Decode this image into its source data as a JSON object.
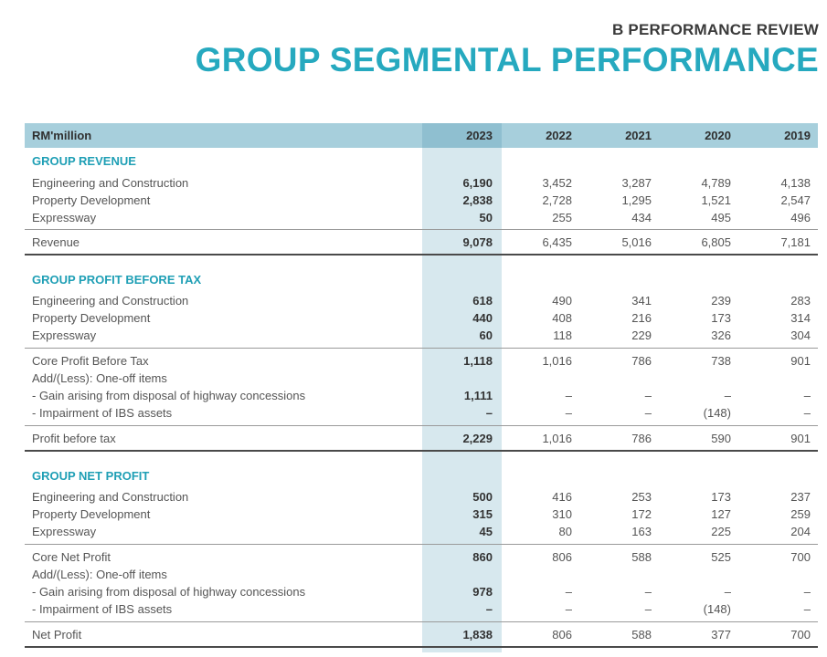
{
  "header": {
    "section": "B  PERFORMANCE REVIEW",
    "title": "GROUP SEGMENTAL PERFORMANCE"
  },
  "table": {
    "unit_label": "RM'million",
    "years": [
      "2023",
      "2022",
      "2021",
      "2020",
      "2019"
    ],
    "revenue": {
      "title": "GROUP REVENUE",
      "rows": [
        {
          "label": "Engineering and Construction",
          "values": [
            "6,190",
            "3,452",
            "3,287",
            "4,789",
            "4,138"
          ]
        },
        {
          "label": "Property Development",
          "values": [
            "2,838",
            "2,728",
            "1,295",
            "1,521",
            "2,547"
          ]
        },
        {
          "label": "Expressway",
          "values": [
            "50",
            "255",
            "434",
            "495",
            "496"
          ]
        }
      ],
      "total": {
        "label": "Revenue",
        "values": [
          "9,078",
          "6,435",
          "5,016",
          "6,805",
          "7,181"
        ]
      }
    },
    "pbt": {
      "title": "GROUP PROFIT BEFORE TAX",
      "rows": [
        {
          "label": "Engineering and Construction",
          "values": [
            "618",
            "490",
            "341",
            "239",
            "283"
          ]
        },
        {
          "label": "Property Development",
          "values": [
            "440",
            "408",
            "216",
            "173",
            "314"
          ]
        },
        {
          "label": "Expressway",
          "values": [
            "60",
            "118",
            "229",
            "326",
            "304"
          ]
        }
      ],
      "core": {
        "label": "Core Profit Before Tax",
        "values": [
          "1,118",
          "1,016",
          "786",
          "738",
          "901"
        ]
      },
      "oneoff_label": "Add/(Less): One-off items",
      "gain": {
        "label": "- Gain arising from disposal of highway concessions",
        "values": [
          "1,111",
          "–",
          "–",
          "–",
          "–"
        ]
      },
      "impair": {
        "label": "- Impairment of IBS assets",
        "values": [
          "–",
          "–",
          "–",
          "(148)",
          "–"
        ]
      },
      "total": {
        "label": "Profit before tax",
        "values": [
          "2,229",
          "1,016",
          "786",
          "590",
          "901"
        ]
      }
    },
    "np": {
      "title": "GROUP NET PROFIT",
      "rows": [
        {
          "label": "Engineering and Construction",
          "values": [
            "500",
            "416",
            "253",
            "173",
            "237"
          ]
        },
        {
          "label": "Property Development",
          "values": [
            "315",
            "310",
            "172",
            "127",
            "259"
          ]
        },
        {
          "label": "Expressway",
          "values": [
            "45",
            "80",
            "163",
            "225",
            "204"
          ]
        }
      ],
      "core": {
        "label": "Core Net Profit",
        "values": [
          "860",
          "806",
          "588",
          "525",
          "700"
        ]
      },
      "oneoff_label": "Add/(Less): One-off items",
      "gain": {
        "label": "- Gain arising from disposal of highway concessions",
        "values": [
          "978",
          "–",
          "–",
          "–",
          "–"
        ]
      },
      "impair": {
        "label": "- Impairment of IBS assets",
        "values": [
          "–",
          "–",
          "–",
          "(148)",
          "–"
        ]
      },
      "total": {
        "label": "Net Profit",
        "values": [
          "1,838",
          "806",
          "588",
          "377",
          "700"
        ]
      }
    }
  }
}
